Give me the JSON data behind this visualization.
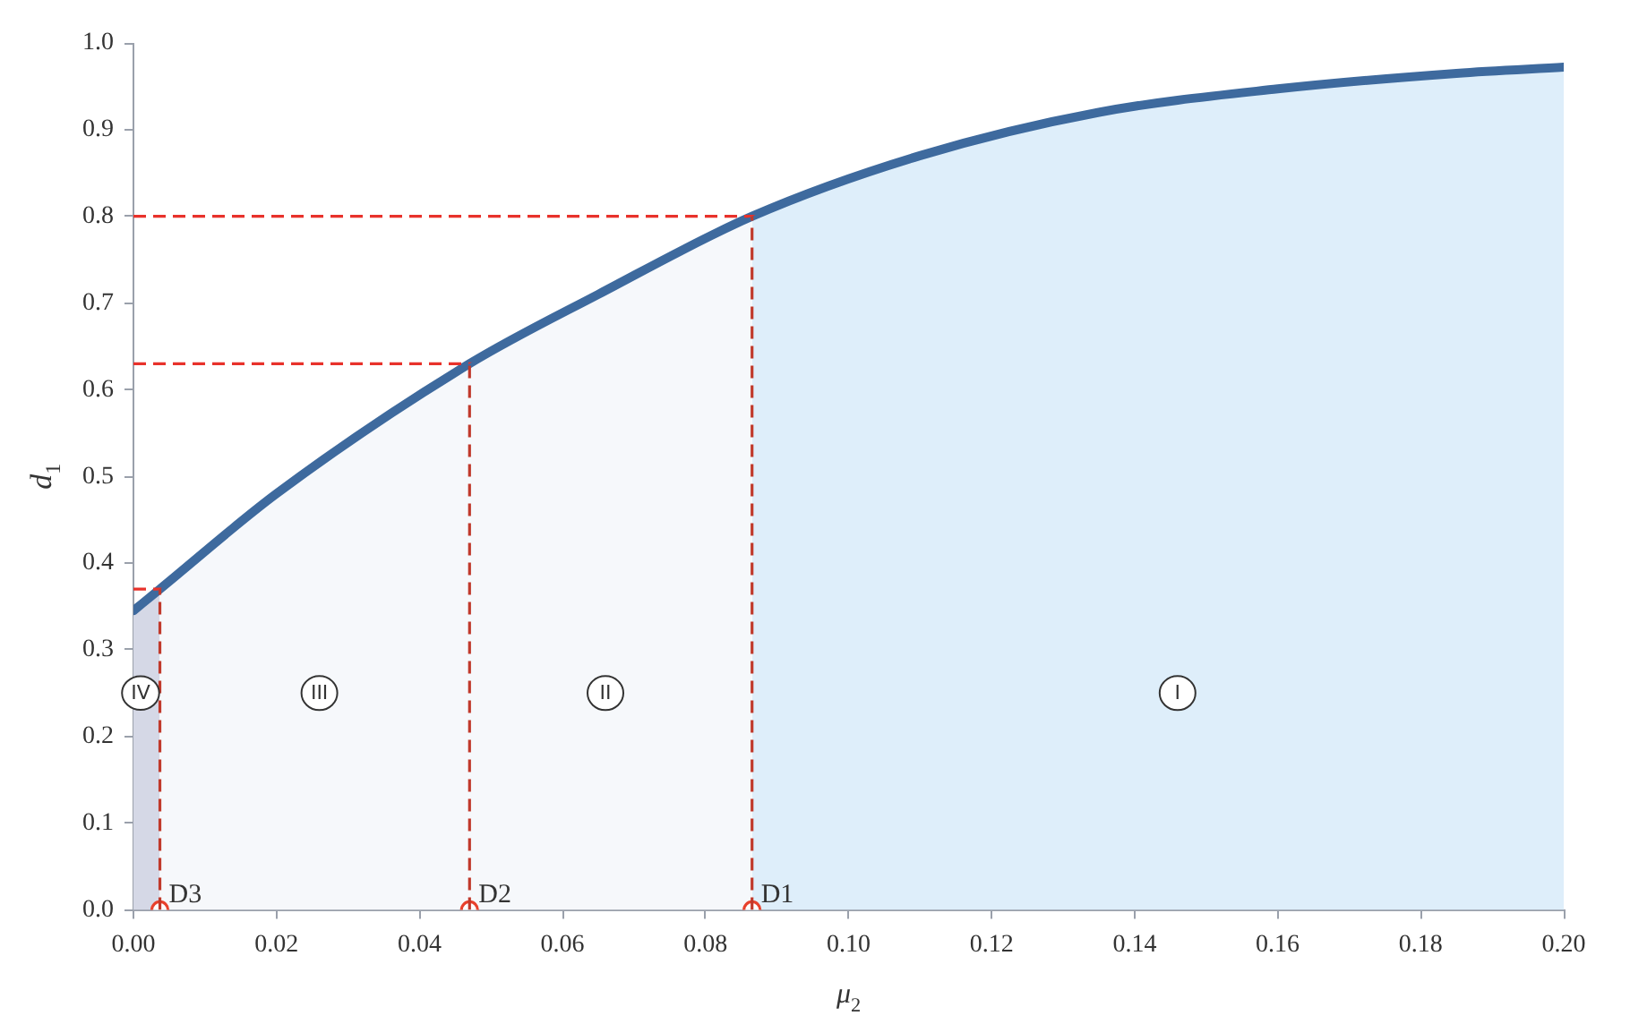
{
  "chart_data": {
    "type": "line",
    "xlabel": "μ$_{2}$",
    "ylabel": "d$_{1}$",
    "xlim": [
      0,
      0.2
    ],
    "ylim": [
      0,
      1
    ],
    "xticks": [
      {
        "value": 0,
        "label": "0.00"
      },
      {
        "value": 0.02,
        "label": "0.02"
      },
      {
        "value": 0.04,
        "label": "0.04"
      },
      {
        "value": 0.06,
        "label": "0.06"
      },
      {
        "value": 0.08,
        "label": "0.08"
      },
      {
        "value": 0.1,
        "label": "0.10"
      },
      {
        "value": 0.12,
        "label": "0.12"
      },
      {
        "value": 0.14,
        "label": "0.14"
      },
      {
        "value": 0.16,
        "label": "0.16"
      },
      {
        "value": 0.18,
        "label": "0.18"
      },
      {
        "value": 0.2,
        "label": "0.20"
      }
    ],
    "yticks": [
      {
        "value": 0,
        "label": "0.0"
      },
      {
        "value": 0.1,
        "label": "0.1"
      },
      {
        "value": 0.2,
        "label": "0.2"
      },
      {
        "value": 0.3,
        "label": "0.3"
      },
      {
        "value": 0.4,
        "label": "0.4"
      },
      {
        "value": 0.5,
        "label": "0.5"
      },
      {
        "value": 0.6,
        "label": "0.6"
      },
      {
        "value": 0.7,
        "label": "0.7"
      },
      {
        "value": 0.8,
        "label": "0.8"
      },
      {
        "value": 0.9,
        "label": "0.9"
      },
      {
        "value": 1,
        "label": "1.0"
      }
    ],
    "grid": false,
    "legend": false,
    "series": [
      {
        "type": "area",
        "color": "#d5d8e6",
        "x": [
          0,
          0.0037
        ],
        "values": [
          0.345,
          0.37
        ]
      },
      {
        "type": "area",
        "color": "#f6f8fb",
        "x": [
          0.0037,
          0.02,
          0.047,
          0.065,
          0.0865
        ],
        "values": [
          0.37,
          0.48,
          0.63,
          0.71,
          0.8
        ]
      },
      {
        "type": "area",
        "color": "#deeefa",
        "x": [
          0.0865,
          0.11,
          0.135,
          0.16,
          0.185,
          0.2
        ],
        "values": [
          0.8,
          0.87,
          0.92,
          0.947,
          0.965,
          0.972
        ]
      },
      {
        "color": "#3e6a9e",
        "marker": "none",
        "line_style": "solid",
        "x": [
          0,
          0.0037,
          0.02,
          0.047,
          0.065,
          0.0865,
          0.11,
          0.135,
          0.16,
          0.185,
          0.2
        ],
        "values": [
          0.345,
          0.37,
          0.48,
          0.63,
          0.71,
          0.8,
          0.87,
          0.92,
          0.947,
          0.965,
          0.972
        ]
      },
      {
        "type": "scatter",
        "color": "#e8412c",
        "marker": "circle",
        "x": [
          0.0037,
          0.047,
          0.0865
        ],
        "values": [
          0,
          0,
          0
        ]
      }
    ],
    "ref_lines": [
      {
        "axis": "y",
        "value": 0.37,
        "color": "#e8322b",
        "line_style": "dashed"
      },
      {
        "axis": "y",
        "value": 0.63,
        "color": "#e8322b",
        "line_style": "dashed"
      },
      {
        "axis": "y",
        "value": 0.8,
        "color": "#e8322b",
        "line_style": "dashed"
      },
      {
        "axis": "x",
        "value": 0.0037,
        "color": "#c0392b",
        "line_style": "dashed"
      },
      {
        "axis": "x",
        "value": 0.047,
        "color": "#c0392b",
        "line_style": "dashed"
      },
      {
        "axis": "x",
        "value": 0.0865,
        "color": "#c0392b",
        "line_style": "dashed"
      }
    ],
    "annotations": [
      {
        "text": "D3",
        "x": 0.0037,
        "y": 0
      },
      {
        "text": "D2",
        "x": 0.047,
        "y": 0
      },
      {
        "text": "D1",
        "x": 0.0865,
        "y": 0
      },
      {
        "text": "IV",
        "x": 0.001,
        "y": 0.25
      },
      {
        "text": "III",
        "x": 0.026,
        "y": 0.25
      },
      {
        "text": "II",
        "x": 0.066,
        "y": 0.25
      },
      {
        "text": "I",
        "x": 0.146,
        "y": 0.25
      }
    ]
  }
}
